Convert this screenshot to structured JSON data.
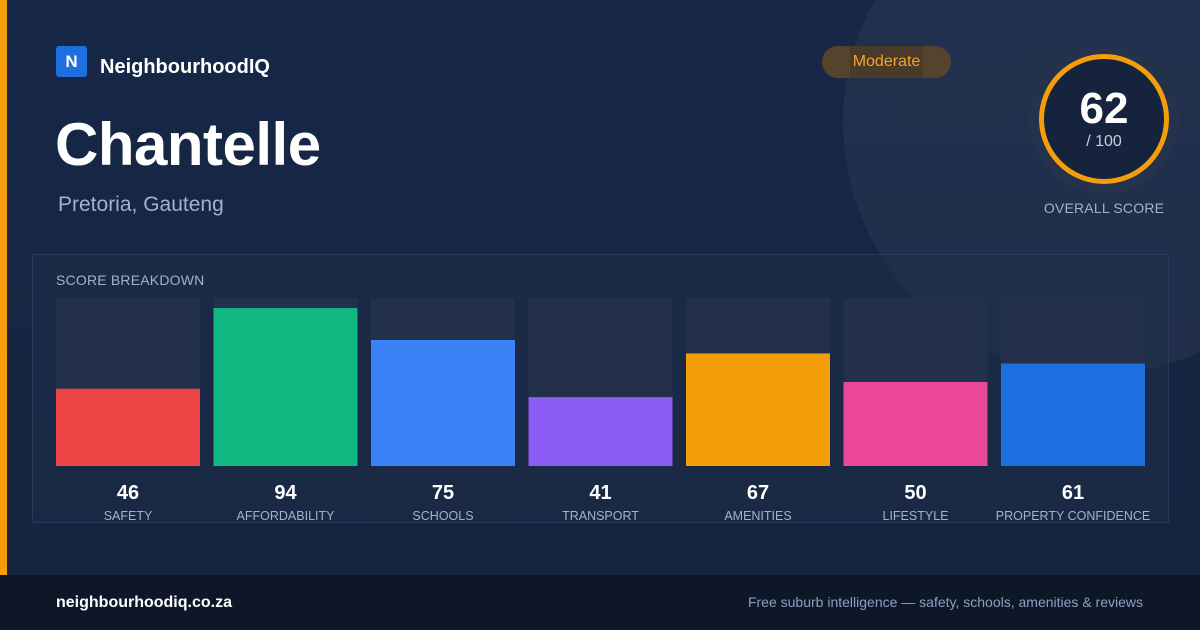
{
  "brand": {
    "logo_letter": "N",
    "name": "NeighbourhoodIQ"
  },
  "title": "Chantelle",
  "subtitle": "Pretoria, Gauteng",
  "badge": {
    "label": "Moderate",
    "color": "#f5a524"
  },
  "overall": {
    "score": "62",
    "max": "/ 100",
    "label": "OVERALL SCORE",
    "ring_color": "#f59e0b"
  },
  "breakdown_title": "SCORE BREAKDOWN",
  "chart_data": {
    "type": "bar",
    "title": "SCORE BREAKDOWN",
    "categories": [
      "SAFETY",
      "AFFORDABILITY",
      "SCHOOLS",
      "TRANSPORT",
      "AMENITIES",
      "LIFESTYLE",
      "PROPERTY CONFIDENCE"
    ],
    "values": [
      46,
      94,
      75,
      41,
      67,
      50,
      61
    ],
    "colors": [
      "#ef4444",
      "#10b981",
      "#3b82f6",
      "#8b5cf6",
      "#f59e0b",
      "#ec4899",
      "#1d6fe0"
    ],
    "ylim": [
      0,
      100
    ],
    "grid": false,
    "legend": "none"
  },
  "footer": {
    "url": "neighbourhoodiq.co.za",
    "tagline": "Free suburb intelligence — safety, schools, amenities & reviews"
  }
}
